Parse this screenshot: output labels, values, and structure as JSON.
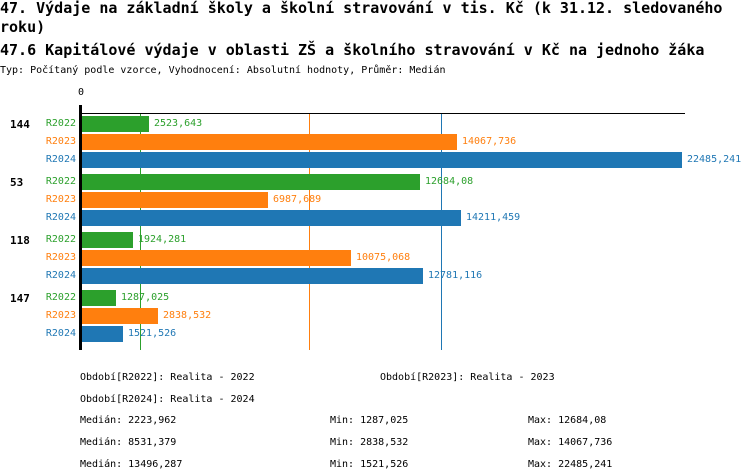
{
  "header": {
    "title1": "47. Výdaje na základní školy a školní stravování v tis. Kč (k 31.12. sledovaného roku)",
    "title2": "47.6 Kapitálové výdaje v oblasti ZŠ a školního stravování v Kč na jednoho žáka",
    "subtitle": "Typ: Počítaný podle vzorce, Vyhodnocení: Absolutní hodnoty, Průměr: Medián"
  },
  "colors": {
    "r2022_green": "#2ca02c",
    "r2023_orange": "#ff7f0e",
    "r2024_blue": "#1f77b4",
    "axis_black": "#000000"
  },
  "chart_data": {
    "type": "bar",
    "orientation": "horizontal",
    "title": "47.6 Kapitálové výdaje v oblasti ZŠ a školního stravování v Kč na jednoho žáka",
    "xlabel": "",
    "ylabel": "",
    "xlim": [
      0,
      22485.241
    ],
    "grid": false,
    "legend_position": "bottom",
    "axis": {
      "zero_label": "0"
    },
    "categories": [
      "144",
      "53",
      "118",
      "147"
    ],
    "series": [
      {
        "name": "R2022",
        "color": "#2ca02c",
        "values": [
          2523.643,
          12684.08,
          1924.281,
          1287.025
        ],
        "value_labels": [
          "2523,643",
          "12684,08",
          "1924,281",
          "1287,025"
        ],
        "median": 2223.962,
        "legend_label": "Období[R2022]: Realita - 2022",
        "stats": {
          "median_label": "Medián: 2223,962",
          "min_label": "Min: 1287,025",
          "max_label": "Max: 12684,08"
        }
      },
      {
        "name": "R2023",
        "color": "#ff7f0e",
        "values": [
          14067.736,
          6987.689,
          10075.068,
          2838.532
        ],
        "value_labels": [
          "14067,736",
          "6987,689",
          "10075,068",
          "2838,532"
        ],
        "median": 8531.379,
        "legend_label": "Období[R2023]: Realita - 2023",
        "stats": {
          "median_label": "Medián: 8531,379",
          "min_label": "Min: 2838,532",
          "max_label": "Max: 14067,736"
        }
      },
      {
        "name": "R2024",
        "color": "#1f77b4",
        "values": [
          22485.241,
          14211.459,
          12781.116,
          1521.526
        ],
        "value_labels": [
          "22485,241",
          "14211,459",
          "12781,116",
          "1521,526"
        ],
        "median": 13496.287,
        "legend_label": "Období[R2024]: Realita - 2024",
        "stats": {
          "median_label": "Medián: 13496,287",
          "min_label": "Min: 1521,526",
          "max_label": "Max: 22485,241"
        }
      }
    ]
  }
}
